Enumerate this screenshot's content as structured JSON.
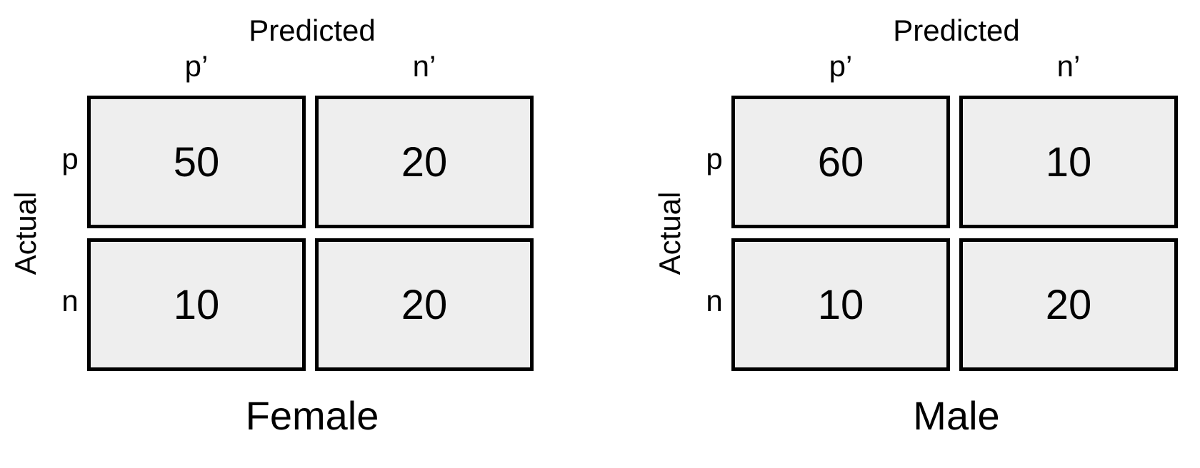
{
  "matrices": [
    {
      "caption": "Female",
      "predicted_label": "Predicted",
      "actual_label": "Actual",
      "columns": [
        "p’",
        "n’"
      ],
      "rows": [
        "p",
        "n"
      ],
      "values": [
        [
          "50",
          "20"
        ],
        [
          "10",
          "20"
        ]
      ]
    },
    {
      "caption": "Male",
      "predicted_label": "Predicted",
      "actual_label": "Actual",
      "columns": [
        "p’",
        "n’"
      ],
      "rows": [
        "p",
        "n"
      ],
      "values": [
        [
          "60",
          "10"
        ],
        [
          "10",
          "20"
        ]
      ]
    }
  ],
  "colors": {
    "cell_fill": "#eeeeee",
    "cell_border": "#000000",
    "text": "#000000",
    "background": "#ffffff"
  }
}
